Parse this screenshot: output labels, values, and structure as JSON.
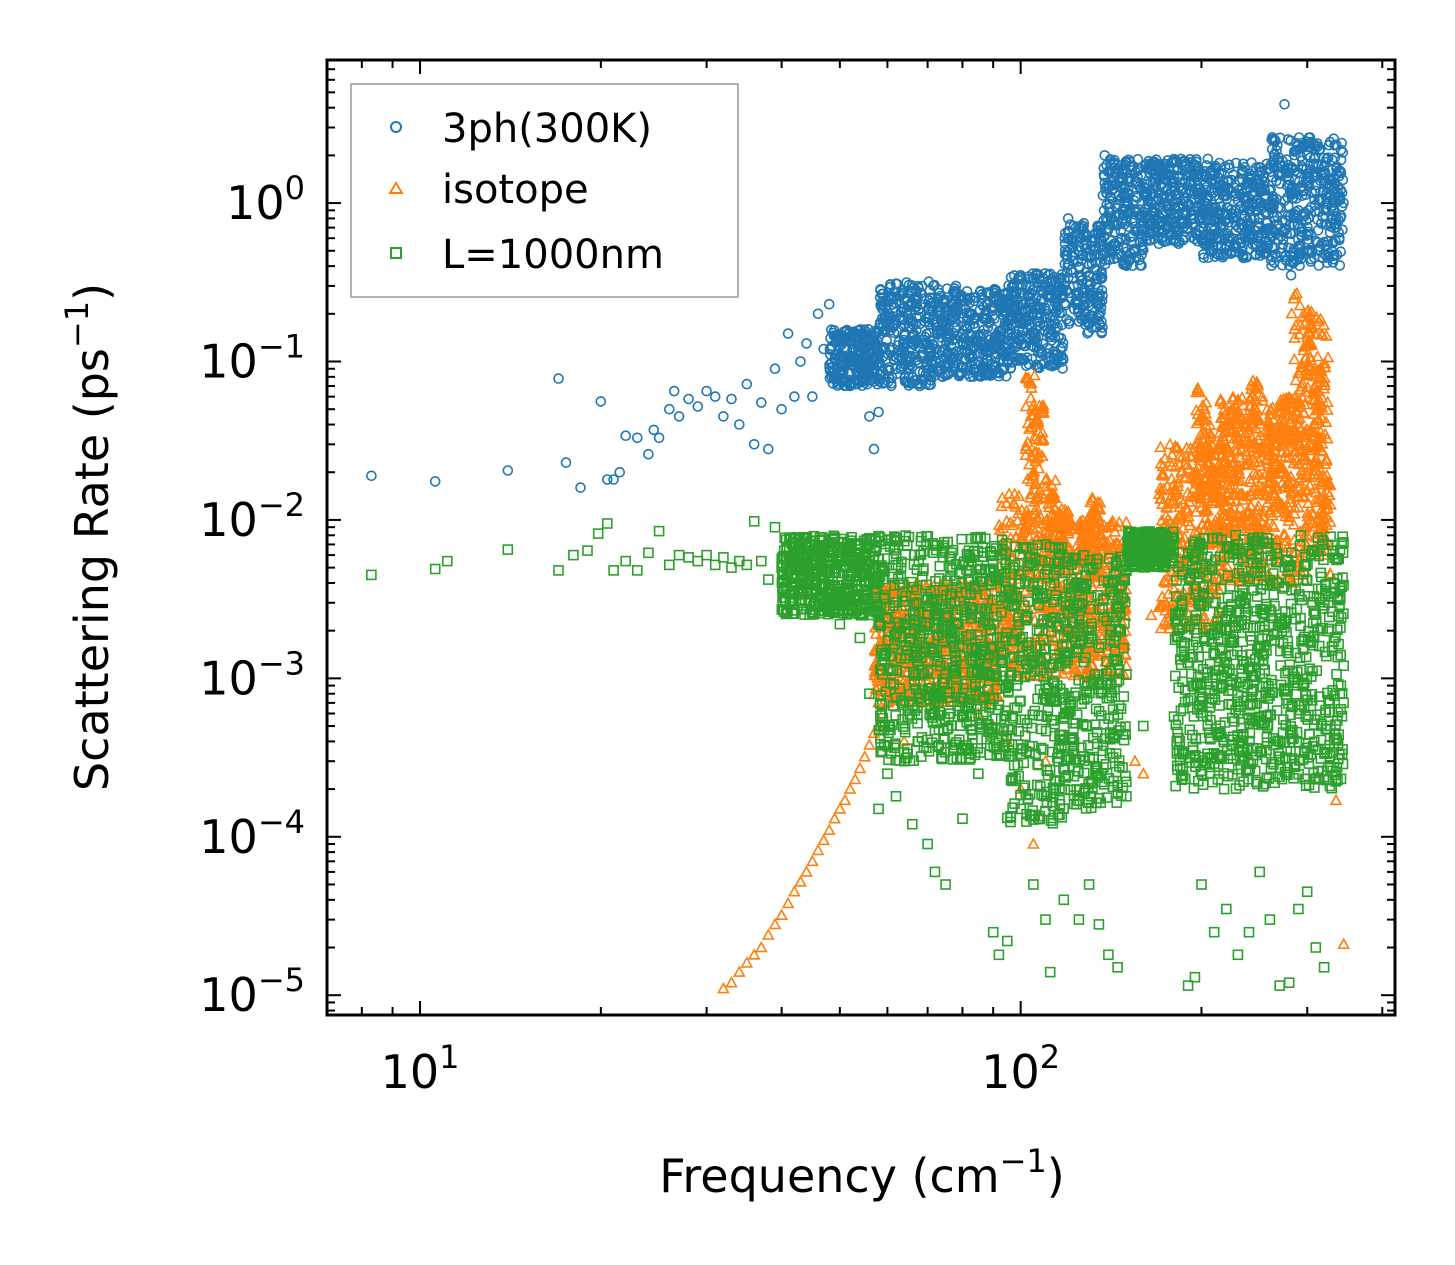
{
  "chart_data": {
    "type": "scatter",
    "xlabel": "Frequency (cm",
    "xlabel_sup": "−1",
    "xlabel_end": ")",
    "ylabel": "Scattering Rate (ps",
    "ylabel_sup": "−1",
    "ylabel_end": ")",
    "xscale": "log",
    "yscale": "log",
    "xlim": [
      7,
      420
    ],
    "ylim": [
      7.5e-06,
      8
    ],
    "x_ticks": [
      {
        "base": "10",
        "exp": "1",
        "value": 10
      },
      {
        "base": "10",
        "exp": "2",
        "value": 100
      }
    ],
    "y_ticks": [
      {
        "base": "10",
        "exp": "0",
        "value": 1
      },
      {
        "base": "10",
        "exp": "−1",
        "value": 0.1
      },
      {
        "base": "10",
        "exp": "−2",
        "value": 0.01
      },
      {
        "base": "10",
        "exp": "−3",
        "value": 0.001
      },
      {
        "base": "10",
        "exp": "−4",
        "value": 0.0001
      },
      {
        "base": "10",
        "exp": "−5",
        "value": 1e-05
      }
    ],
    "legend_position": "top-left",
    "colors": {
      "3ph": "#1f77b4",
      "isotope": "#ff7f0e",
      "boundary": "#2ca02c"
    },
    "series": [
      {
        "name": "3ph(300K)",
        "marker": "circle",
        "color": "#1f77b4",
        "points": [
          [
            8.3,
            0.019
          ],
          [
            10.6,
            0.0175
          ],
          [
            14,
            0.0205
          ],
          [
            17,
            0.078
          ],
          [
            17.5,
            0.023
          ],
          [
            18.5,
            0.016
          ],
          [
            20,
            0.056
          ],
          [
            20.5,
            0.018
          ],
          [
            21,
            0.018
          ],
          [
            21.5,
            0.02
          ],
          [
            22,
            0.034
          ],
          [
            23,
            0.033
          ],
          [
            24,
            0.026
          ],
          [
            24.5,
            0.037
          ],
          [
            25,
            0.033
          ],
          [
            26,
            0.05
          ],
          [
            26.5,
            0.065
          ],
          [
            27,
            0.045
          ],
          [
            28,
            0.058
          ],
          [
            29,
            0.052
          ],
          [
            30,
            0.065
          ],
          [
            31,
            0.06
          ],
          [
            32,
            0.045
          ],
          [
            33,
            0.058
          ],
          [
            34,
            0.04
          ],
          [
            35,
            0.072
          ],
          [
            36,
            0.03
          ],
          [
            37,
            0.055
          ],
          [
            38,
            0.028
          ],
          [
            39,
            0.09
          ],
          [
            40,
            0.05
          ],
          [
            41,
            0.15
          ],
          [
            42,
            0.06
          ],
          [
            43,
            0.1
          ],
          [
            44,
            0.13
          ],
          [
            45,
            0.06
          ],
          [
            46,
            0.2
          ],
          [
            47,
            0.12
          ],
          [
            48,
            0.23
          ],
          [
            49,
            0.08
          ],
          [
            50,
            0.14
          ],
          [
            52,
            0.07
          ],
          [
            54,
            0.1
          ],
          [
            56,
            0.045
          ],
          [
            57,
            0.028
          ],
          [
            58,
            0.048
          ],
          [
            59,
            0.12
          ],
          [
            62,
            0.31
          ],
          [
            64,
            0.25
          ],
          [
            66,
            0.18
          ],
          [
            70,
            0.13
          ],
          [
            74,
            0.17
          ],
          [
            78,
            0.3
          ],
          [
            82,
            0.2
          ],
          [
            86,
            0.12
          ],
          [
            90,
            0.16
          ],
          [
            95,
            0.24
          ],
          [
            100,
            0.35
          ],
          [
            105,
            0.14
          ],
          [
            110,
            0.3
          ],
          [
            115,
            0.22
          ],
          [
            120,
            0.8
          ],
          [
            125,
            0.5
          ],
          [
            130,
            0.35
          ],
          [
            135,
            0.6
          ],
          [
            138,
            2.0
          ],
          [
            142,
            1.2
          ],
          [
            148,
            0.8
          ],
          [
            155,
            0.5
          ],
          [
            165,
            1.0
          ],
          [
            175,
            1.5
          ],
          [
            185,
            1.9
          ],
          [
            195,
            0.7
          ],
          [
            205,
            1.9
          ],
          [
            215,
            1.3
          ],
          [
            225,
            0.6
          ],
          [
            235,
            0.9
          ],
          [
            245,
            0.8
          ],
          [
            255,
            1.2
          ],
          [
            265,
            2.5
          ],
          [
            275,
            4.2
          ],
          [
            282,
            0.35
          ],
          [
            290,
            0.9
          ],
          [
            300,
            2.0
          ],
          [
            310,
            1.3
          ],
          [
            320,
            1.7
          ],
          [
            330,
            0.8
          ],
          [
            340,
            1.1
          ]
        ],
        "bands": [
          {
            "x0": 48,
            "x1": 58,
            "ylo": 0.07,
            "yhi": 0.16
          },
          {
            "x0": 58,
            "x1": 72,
            "ylo": 0.07,
            "yhi": 0.32
          },
          {
            "x0": 72,
            "x1": 95,
            "ylo": 0.08,
            "yhi": 0.29
          },
          {
            "x0": 95,
            "x1": 118,
            "ylo": 0.09,
            "yhi": 0.36
          },
          {
            "x0": 118,
            "x1": 137,
            "ylo": 0.15,
            "yhi": 0.75
          },
          {
            "x0": 137,
            "x1": 160,
            "ylo": 0.4,
            "yhi": 1.9
          },
          {
            "x0": 160,
            "x1": 200,
            "ylo": 0.55,
            "yhi": 1.9
          },
          {
            "x0": 200,
            "x1": 260,
            "ylo": 0.45,
            "yhi": 1.8
          },
          {
            "x0": 260,
            "x1": 345,
            "ylo": 0.4,
            "yhi": 2.6
          }
        ]
      },
      {
        "name": "isotope",
        "marker": "triangle",
        "color": "#ff7f0e",
        "points": [
          [
            32,
            1.1e-05
          ],
          [
            33,
            1.2e-05
          ],
          [
            34,
            1.4e-05
          ],
          [
            35,
            1.6e-05
          ],
          [
            36,
            1.8e-05
          ],
          [
            37,
            2e-05
          ],
          [
            38,
            2.4e-05
          ],
          [
            39,
            2.8e-05
          ],
          [
            40,
            3.2e-05
          ],
          [
            41,
            3.8e-05
          ],
          [
            42,
            4.5e-05
          ],
          [
            43,
            5.2e-05
          ],
          [
            44,
            6e-05
          ],
          [
            45,
            7e-05
          ],
          [
            46,
            8.2e-05
          ],
          [
            47,
            9.5e-05
          ],
          [
            48,
            0.00011
          ],
          [
            49,
            0.00013
          ],
          [
            50,
            0.00015
          ],
          [
            51,
            0.00017
          ],
          [
            52,
            0.0002
          ],
          [
            53,
            0.00023
          ],
          [
            54,
            0.00027
          ],
          [
            55,
            0.00032
          ],
          [
            56,
            0.00038
          ],
          [
            57,
            0.00045
          ],
          [
            58,
            0.0005
          ],
          [
            59,
            0.0006
          ],
          [
            60,
            0.0007
          ],
          [
            62,
            0.0008
          ],
          [
            64,
            0.0004
          ],
          [
            70,
            0.0015
          ],
          [
            75,
            0.0009
          ],
          [
            80,
            0.0008
          ],
          [
            85,
            0.0006
          ],
          [
            90,
            0.0005
          ],
          [
            95,
            0.0004
          ],
          [
            100,
            0.0002
          ],
          [
            105,
            9e-05
          ],
          [
            110,
            0.0003
          ],
          [
            120,
            0.0006
          ],
          [
            130,
            0.001
          ],
          [
            140,
            0.0015
          ],
          [
            150,
            0.0012
          ],
          [
            155,
            0.0003
          ],
          [
            160,
            0.00025
          ],
          [
            165,
            0.0025
          ],
          [
            170,
            0.0028
          ],
          [
            175,
            0.004
          ],
          [
            180,
            0.0055
          ],
          [
            190,
            0.0022
          ],
          [
            200,
            0.012
          ],
          [
            250,
            0.005
          ],
          [
            290,
            0.012
          ],
          [
            300,
            0.008
          ],
          [
            320,
            0.006
          ],
          [
            335,
            0.00017
          ],
          [
            345,
            2.1e-05
          ]
        ],
        "bands": [
          {
            "x0": 57,
            "x1": 92,
            "ylo": 0.0007,
            "yhi": 0.004
          },
          {
            "x0": 92,
            "x1": 110,
            "ylo": 0.001,
            "yhi": 0.015
          },
          {
            "x0": 110,
            "x1": 150,
            "ylo": 0.001,
            "yhi": 0.01
          },
          {
            "x0": 170,
            "x1": 215,
            "ylo": 0.002,
            "yhi": 0.03
          },
          {
            "x0": 215,
            "x1": 300,
            "ylo": 0.004,
            "yhi": 0.06
          },
          {
            "x0": 300,
            "x1": 325,
            "ylo": 0.006,
            "yhi": 0.2
          }
        ],
        "spikes": [
          [
            104,
            0.09
          ],
          [
            107,
            0.06
          ],
          [
            112,
            0.02
          ],
          [
            118,
            0.012
          ],
          [
            128,
            0.01
          ],
          [
            133,
            0.014
          ],
          [
            200,
            0.07
          ],
          [
            207,
            0.04
          ],
          [
            218,
            0.05
          ],
          [
            228,
            0.06
          ],
          [
            245,
            0.08
          ],
          [
            262,
            0.04
          ],
          [
            276,
            0.06
          ],
          [
            288,
            0.3
          ],
          [
            300,
            0.22
          ],
          [
            312,
            0.1
          ],
          [
            322,
            0.02
          ]
        ]
      },
      {
        "name": "L=1000nm",
        "marker": "square",
        "color": "#2ca02c",
        "points": [
          [
            8.3,
            0.0045
          ],
          [
            10.6,
            0.0049
          ],
          [
            11.1,
            0.0055
          ],
          [
            14,
            0.0065
          ],
          [
            17,
            0.0048
          ],
          [
            18,
            0.006
          ],
          [
            19,
            0.0064
          ],
          [
            19.8,
            0.0082
          ],
          [
            20.5,
            0.0095
          ],
          [
            21,
            0.0048
          ],
          [
            22,
            0.0055
          ],
          [
            23,
            0.0048
          ],
          [
            24,
            0.0062
          ],
          [
            25,
            0.0085
          ],
          [
            26,
            0.0052
          ],
          [
            27,
            0.006
          ],
          [
            28,
            0.0058
          ],
          [
            29,
            0.0055
          ],
          [
            30,
            0.006
          ],
          [
            31,
            0.0052
          ],
          [
            32,
            0.0058
          ],
          [
            33,
            0.005
          ],
          [
            34,
            0.0055
          ],
          [
            35,
            0.0052
          ],
          [
            36,
            0.0098
          ],
          [
            37,
            0.0055
          ],
          [
            38,
            0.0042
          ],
          [
            39,
            0.009
          ],
          [
            40,
            0.005
          ],
          [
            41,
            0.0045
          ],
          [
            42,
            0.0038
          ],
          [
            43,
            0.0042
          ],
          [
            44,
            0.0035
          ],
          [
            45,
            0.0052
          ],
          [
            46,
            0.0032
          ],
          [
            48,
            0.0028
          ],
          [
            50,
            0.0022
          ],
          [
            52,
            0.0035
          ],
          [
            54,
            0.0018
          ],
          [
            56,
            0.0008
          ],
          [
            58,
            0.00015
          ],
          [
            60,
            0.00025
          ],
          [
            62,
            0.00018
          ],
          [
            64,
            0.0003
          ],
          [
            66,
            0.00012
          ],
          [
            70,
            9e-05
          ],
          [
            72,
            6e-05
          ],
          [
            75,
            5e-05
          ],
          [
            80,
            0.00013
          ],
          [
            85,
            0.00025
          ],
          [
            90,
            2.5e-05
          ],
          [
            92,
            1.8e-05
          ],
          [
            95,
            2.2e-05
          ],
          [
            100,
            0.00015
          ],
          [
            105,
            5e-05
          ],
          [
            110,
            3e-05
          ],
          [
            112,
            1.4e-05
          ],
          [
            118,
            4e-05
          ],
          [
            125,
            3e-05
          ],
          [
            130,
            5e-05
          ],
          [
            135,
            2.8e-05
          ],
          [
            140,
            1.8e-05
          ],
          [
            145,
            1.5e-05
          ],
          [
            150,
            0.00018
          ],
          [
            160,
            0.0005
          ],
          [
            170,
            0.0075
          ],
          [
            180,
            0.0078
          ],
          [
            190,
            1.15e-05
          ],
          [
            195,
            1.3e-05
          ],
          [
            200,
            5e-05
          ],
          [
            210,
            2.5e-05
          ],
          [
            220,
            3.5e-05
          ],
          [
            230,
            1.8e-05
          ],
          [
            240,
            2.5e-05
          ],
          [
            250,
            6e-05
          ],
          [
            260,
            3e-05
          ],
          [
            270,
            1.15e-05
          ],
          [
            280,
            1.2e-05
          ],
          [
            290,
            3.5e-05
          ],
          [
            300,
            4.5e-05
          ],
          [
            310,
            2e-05
          ],
          [
            320,
            1.5e-05
          ],
          [
            330,
            0.0015
          ],
          [
            340,
            0.0008
          ],
          [
            345,
            0.0012
          ]
        ],
        "bands": [
          {
            "x0": 40,
            "x1": 58,
            "ylo": 0.0025,
            "yhi": 0.008
          },
          {
            "x0": 58,
            "x1": 95,
            "ylo": 0.0003,
            "yhi": 0.008
          },
          {
            "x0": 95,
            "x1": 118,
            "ylo": 0.00012,
            "yhi": 0.007
          },
          {
            "x0": 118,
            "x1": 150,
            "ylo": 0.00015,
            "yhi": 0.006
          },
          {
            "x0": 150,
            "x1": 180,
            "ylo": 0.005,
            "yhi": 0.0085
          },
          {
            "x0": 180,
            "x1": 345,
            "ylo": 0.0002,
            "yhi": 0.008
          }
        ]
      }
    ]
  }
}
